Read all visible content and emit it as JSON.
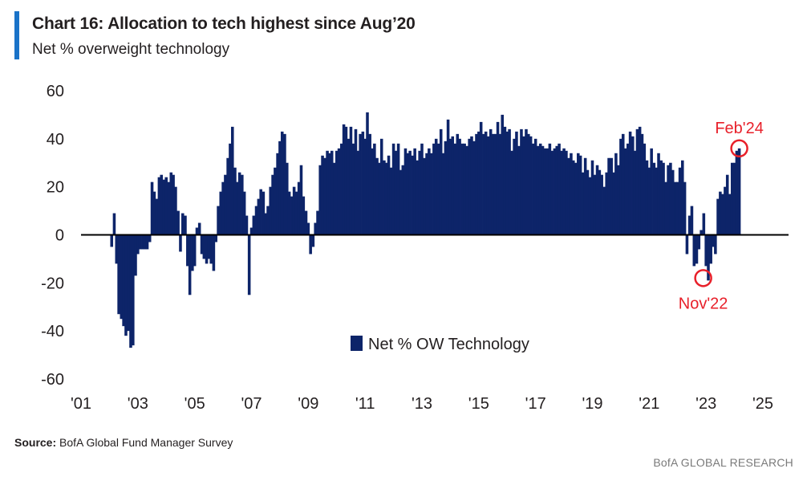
{
  "header": {
    "title": "Chart 16: Allocation to tech highest since Aug’20",
    "subtitle": "Net % overweight technology"
  },
  "footer": {
    "source_label": "Source:",
    "source_text": "BofA Global Fund Manager Survey",
    "credit": "BofA GLOBAL RESEARCH"
  },
  "colors": {
    "series": "#0d2469",
    "annotation": "#e8202a",
    "accent": "#1a73c8"
  },
  "chart_data": {
    "type": "bar",
    "title": "Chart 16: Allocation to tech highest since Aug’20",
    "subtitle": "Net % overweight technology",
    "xlabel": "",
    "ylabel": "",
    "xlim": [
      2001,
      2025
    ],
    "ylim": [
      -60,
      60
    ],
    "yticks": [
      60,
      40,
      20,
      0,
      -20,
      -40,
      -60
    ],
    "ytick_labels": [
      "60",
      "40",
      "20",
      "0",
      "-20",
      "-40",
      "-60"
    ],
    "xticks": [
      2001,
      2003,
      2005,
      2007,
      2009,
      2011,
      2013,
      2015,
      2017,
      2019,
      2021,
      2023,
      2025
    ],
    "xtick_labels": [
      "'01",
      "'03",
      "'05",
      "'07",
      "'09",
      "'11",
      "'13",
      "'15",
      "'17",
      "'19",
      "'21",
      "'23",
      "'25"
    ],
    "grid": false,
    "legend_position": "bottom-center",
    "series": [
      {
        "name": "Net % OW Technology",
        "points": [
          [
            2002.08,
            -5
          ],
          [
            2002.17,
            9
          ],
          [
            2002.25,
            -12
          ],
          [
            2002.33,
            -33
          ],
          [
            2002.42,
            -35
          ],
          [
            2002.5,
            -38
          ],
          [
            2002.58,
            -42
          ],
          [
            2002.67,
            -40
          ],
          [
            2002.75,
            -47
          ],
          [
            2002.83,
            -46
          ],
          [
            2002.92,
            -17
          ],
          [
            2003.0,
            -8
          ],
          [
            2003.08,
            -6
          ],
          [
            2003.17,
            -6
          ],
          [
            2003.25,
            -6
          ],
          [
            2003.33,
            -6
          ],
          [
            2003.42,
            -3
          ],
          [
            2003.5,
            22
          ],
          [
            2003.58,
            18
          ],
          [
            2003.67,
            15
          ],
          [
            2003.75,
            24
          ],
          [
            2003.83,
            25
          ],
          [
            2003.92,
            23
          ],
          [
            2004.0,
            24
          ],
          [
            2004.08,
            22
          ],
          [
            2004.17,
            26
          ],
          [
            2004.25,
            25
          ],
          [
            2004.33,
            20
          ],
          [
            2004.42,
            10
          ],
          [
            2004.5,
            -7
          ],
          [
            2004.58,
            9
          ],
          [
            2004.67,
            8
          ],
          [
            2004.75,
            -13
          ],
          [
            2004.83,
            -25
          ],
          [
            2004.92,
            -15
          ],
          [
            2005.0,
            -13
          ],
          [
            2005.08,
            3
          ],
          [
            2005.17,
            5
          ],
          [
            2005.25,
            -8
          ],
          [
            2005.33,
            -10
          ],
          [
            2005.42,
            -12
          ],
          [
            2005.5,
            -10
          ],
          [
            2005.58,
            -12
          ],
          [
            2005.67,
            -15
          ],
          [
            2005.75,
            -3
          ],
          [
            2005.83,
            12
          ],
          [
            2005.92,
            18
          ],
          [
            2006.0,
            22
          ],
          [
            2006.08,
            25
          ],
          [
            2006.17,
            32
          ],
          [
            2006.25,
            38
          ],
          [
            2006.33,
            45
          ],
          [
            2006.42,
            28
          ],
          [
            2006.5,
            22
          ],
          [
            2006.58,
            26
          ],
          [
            2006.67,
            25
          ],
          [
            2006.75,
            18
          ],
          [
            2006.83,
            8
          ],
          [
            2006.92,
            -25
          ],
          [
            2007.0,
            3
          ],
          [
            2007.08,
            8
          ],
          [
            2007.17,
            12
          ],
          [
            2007.25,
            15
          ],
          [
            2007.33,
            19
          ],
          [
            2007.42,
            18
          ],
          [
            2007.5,
            9
          ],
          [
            2007.58,
            12
          ],
          [
            2007.67,
            20
          ],
          [
            2007.75,
            25
          ],
          [
            2007.83,
            28
          ],
          [
            2007.92,
            34
          ],
          [
            2008.0,
            39
          ],
          [
            2008.08,
            43
          ],
          [
            2008.17,
            42
          ],
          [
            2008.25,
            30
          ],
          [
            2008.33,
            18
          ],
          [
            2008.42,
            16
          ],
          [
            2008.5,
            20
          ],
          [
            2008.58,
            18
          ],
          [
            2008.67,
            22
          ],
          [
            2008.75,
            29
          ],
          [
            2008.83,
            16
          ],
          [
            2008.92,
            10
          ],
          [
            2009.0,
            5
          ],
          [
            2009.08,
            -8
          ],
          [
            2009.17,
            -5
          ],
          [
            2009.25,
            5
          ],
          [
            2009.33,
            10
          ],
          [
            2009.42,
            29
          ],
          [
            2009.5,
            33
          ],
          [
            2009.58,
            32
          ],
          [
            2009.67,
            35
          ],
          [
            2009.75,
            34
          ],
          [
            2009.83,
            35
          ],
          [
            2009.92,
            30
          ],
          [
            2010.0,
            35
          ],
          [
            2010.08,
            36
          ],
          [
            2010.17,
            38
          ],
          [
            2010.25,
            46
          ],
          [
            2010.33,
            45
          ],
          [
            2010.42,
            40
          ],
          [
            2010.5,
            45
          ],
          [
            2010.58,
            38
          ],
          [
            2010.67,
            44
          ],
          [
            2010.75,
            35
          ],
          [
            2010.83,
            42
          ],
          [
            2010.92,
            43
          ],
          [
            2011.0,
            40
          ],
          [
            2011.08,
            51
          ],
          [
            2011.17,
            42
          ],
          [
            2011.25,
            36
          ],
          [
            2011.33,
            38
          ],
          [
            2011.42,
            32
          ],
          [
            2011.5,
            30
          ],
          [
            2011.58,
            40
          ],
          [
            2011.67,
            31
          ],
          [
            2011.75,
            30
          ],
          [
            2011.83,
            33
          ],
          [
            2011.92,
            28
          ],
          [
            2012.0,
            38
          ],
          [
            2012.08,
            35
          ],
          [
            2012.17,
            38
          ],
          [
            2012.25,
            27
          ],
          [
            2012.33,
            29
          ],
          [
            2012.42,
            36
          ],
          [
            2012.5,
            34
          ],
          [
            2012.58,
            35
          ],
          [
            2012.67,
            33
          ],
          [
            2012.75,
            36
          ],
          [
            2012.83,
            31
          ],
          [
            2012.92,
            35
          ],
          [
            2013.0,
            38
          ],
          [
            2013.08,
            32
          ],
          [
            2013.17,
            34
          ],
          [
            2013.25,
            36
          ],
          [
            2013.33,
            34
          ],
          [
            2013.42,
            38
          ],
          [
            2013.5,
            40
          ],
          [
            2013.58,
            38
          ],
          [
            2013.67,
            44
          ],
          [
            2013.75,
            34
          ],
          [
            2013.83,
            39
          ],
          [
            2013.92,
            48
          ],
          [
            2014.0,
            40
          ],
          [
            2014.08,
            41
          ],
          [
            2014.17,
            38
          ],
          [
            2014.25,
            42
          ],
          [
            2014.33,
            40
          ],
          [
            2014.42,
            38
          ],
          [
            2014.5,
            38
          ],
          [
            2014.58,
            37
          ],
          [
            2014.67,
            40
          ],
          [
            2014.75,
            41
          ],
          [
            2014.83,
            39
          ],
          [
            2014.92,
            42
          ],
          [
            2015.0,
            43
          ],
          [
            2015.08,
            47
          ],
          [
            2015.17,
            42
          ],
          [
            2015.25,
            43
          ],
          [
            2015.33,
            41
          ],
          [
            2015.42,
            44
          ],
          [
            2015.5,
            42
          ],
          [
            2015.58,
            42
          ],
          [
            2015.67,
            47
          ],
          [
            2015.75,
            42
          ],
          [
            2015.83,
            50
          ],
          [
            2015.92,
            45
          ],
          [
            2016.0,
            43
          ],
          [
            2016.08,
            44
          ],
          [
            2016.17,
            35
          ],
          [
            2016.25,
            40
          ],
          [
            2016.33,
            43
          ],
          [
            2016.42,
            37
          ],
          [
            2016.5,
            44
          ],
          [
            2016.58,
            41
          ],
          [
            2016.67,
            44
          ],
          [
            2016.75,
            42
          ],
          [
            2016.83,
            41
          ],
          [
            2016.92,
            38
          ],
          [
            2017.0,
            40
          ],
          [
            2017.08,
            37
          ],
          [
            2017.17,
            38
          ],
          [
            2017.25,
            37
          ],
          [
            2017.33,
            36
          ],
          [
            2017.42,
            36
          ],
          [
            2017.5,
            38
          ],
          [
            2017.58,
            35
          ],
          [
            2017.67,
            36
          ],
          [
            2017.75,
            37
          ],
          [
            2017.83,
            38
          ],
          [
            2017.92,
            35
          ],
          [
            2018.0,
            36
          ],
          [
            2018.08,
            35
          ],
          [
            2018.17,
            32
          ],
          [
            2018.25,
            34
          ],
          [
            2018.33,
            31
          ],
          [
            2018.42,
            30
          ],
          [
            2018.5,
            34
          ],
          [
            2018.58,
            33
          ],
          [
            2018.67,
            26
          ],
          [
            2018.75,
            32
          ],
          [
            2018.83,
            27
          ],
          [
            2018.92,
            24
          ],
          [
            2019.0,
            31
          ],
          [
            2019.08,
            25
          ],
          [
            2019.17,
            29
          ],
          [
            2019.25,
            27
          ],
          [
            2019.33,
            25
          ],
          [
            2019.42,
            20
          ],
          [
            2019.5,
            26
          ],
          [
            2019.58,
            32
          ],
          [
            2019.67,
            32
          ],
          [
            2019.75,
            26
          ],
          [
            2019.83,
            34
          ],
          [
            2019.92,
            29
          ],
          [
            2020.0,
            40
          ],
          [
            2020.08,
            42
          ],
          [
            2020.17,
            36
          ],
          [
            2020.25,
            38
          ],
          [
            2020.33,
            43
          ],
          [
            2020.42,
            41
          ],
          [
            2020.5,
            35
          ],
          [
            2020.58,
            44
          ],
          [
            2020.67,
            45
          ],
          [
            2020.75,
            42
          ],
          [
            2020.83,
            38
          ],
          [
            2020.92,
            31
          ],
          [
            2021.0,
            28
          ],
          [
            2021.08,
            36
          ],
          [
            2021.17,
            30
          ],
          [
            2021.25,
            28
          ],
          [
            2021.33,
            34
          ],
          [
            2021.42,
            31
          ],
          [
            2021.5,
            30
          ],
          [
            2021.58,
            22
          ],
          [
            2021.67,
            29
          ],
          [
            2021.75,
            30
          ],
          [
            2021.83,
            27
          ],
          [
            2021.92,
            22
          ],
          [
            2022.0,
            22
          ],
          [
            2022.08,
            28
          ],
          [
            2022.17,
            31
          ],
          [
            2022.25,
            22
          ],
          [
            2022.33,
            -8
          ],
          [
            2022.42,
            8
          ],
          [
            2022.5,
            12
          ],
          [
            2022.58,
            -13
          ],
          [
            2022.67,
            -12
          ],
          [
            2022.75,
            -6
          ],
          [
            2022.83,
            2
          ],
          [
            2022.92,
            9
          ],
          [
            2023.0,
            -13
          ],
          [
            2023.08,
            -19
          ],
          [
            2023.17,
            -12
          ],
          [
            2023.25,
            -5
          ],
          [
            2023.33,
            -8
          ],
          [
            2023.42,
            15
          ],
          [
            2023.5,
            18
          ],
          [
            2023.58,
            17
          ],
          [
            2023.67,
            20
          ],
          [
            2023.75,
            25
          ],
          [
            2023.83,
            17
          ],
          [
            2023.92,
            30
          ],
          [
            2024.0,
            30
          ],
          [
            2024.08,
            35
          ],
          [
            2024.17,
            36
          ]
        ]
      }
    ],
    "annotations": [
      {
        "label": "Feb'24",
        "x": 2024.17,
        "y": 36,
        "label_position": "above"
      },
      {
        "label": "Nov'22",
        "x": 2022.9,
        "y": -18,
        "label_position": "below"
      }
    ]
  }
}
